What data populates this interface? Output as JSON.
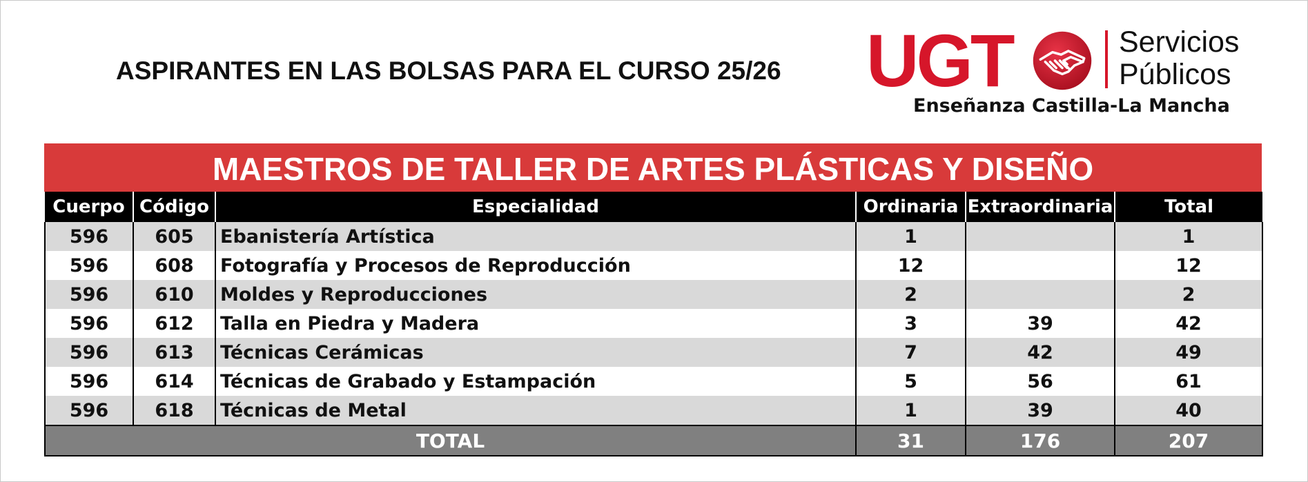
{
  "header": {
    "title": "ASPIRANTES EN LAS BOLSAS PARA EL CURSO 25/26"
  },
  "logo": {
    "brand": "UGT",
    "line1": "Servicios",
    "line2": "Públicos",
    "subtitle": "Enseñanza Castilla-La Mancha",
    "colors": {
      "brand_red": "#d6162a"
    },
    "icon": "handshake-seal"
  },
  "table": {
    "banner": "MAESTROS DE TALLER DE ARTES PLÁSTICAS Y DISEÑO",
    "banner_color": "#d83a3a",
    "columns": [
      "Cuerpo",
      "Código",
      "Especialidad",
      "Ordinaria",
      "Extraordinaria",
      "Total"
    ],
    "rows": [
      {
        "cuerpo": "596",
        "codigo": "605",
        "especialidad": "Ebanistería Artística",
        "ordinaria": "1",
        "extraordinaria": "",
        "total": "1"
      },
      {
        "cuerpo": "596",
        "codigo": "608",
        "especialidad": "Fotografía y Procesos de Reproducción",
        "ordinaria": "12",
        "extraordinaria": "",
        "total": "12"
      },
      {
        "cuerpo": "596",
        "codigo": "610",
        "especialidad": "Moldes y Reproducciones",
        "ordinaria": "2",
        "extraordinaria": "",
        "total": "2"
      },
      {
        "cuerpo": "596",
        "codigo": "612",
        "especialidad": "Talla en Piedra y Madera",
        "ordinaria": "3",
        "extraordinaria": "39",
        "total": "42"
      },
      {
        "cuerpo": "596",
        "codigo": "613",
        "especialidad": "Técnicas Cerámicas",
        "ordinaria": "7",
        "extraordinaria": "42",
        "total": "49"
      },
      {
        "cuerpo": "596",
        "codigo": "614",
        "especialidad": "Técnicas de Grabado y Estampación",
        "ordinaria": "5",
        "extraordinaria": "56",
        "total": "61"
      },
      {
        "cuerpo": "596",
        "codigo": "618",
        "especialidad": "Técnicas de Metal",
        "ordinaria": "1",
        "extraordinaria": "39",
        "total": "40"
      }
    ],
    "totals": {
      "label": "TOTAL",
      "ordinaria": "31",
      "extraordinaria": "176",
      "total": "207"
    }
  }
}
